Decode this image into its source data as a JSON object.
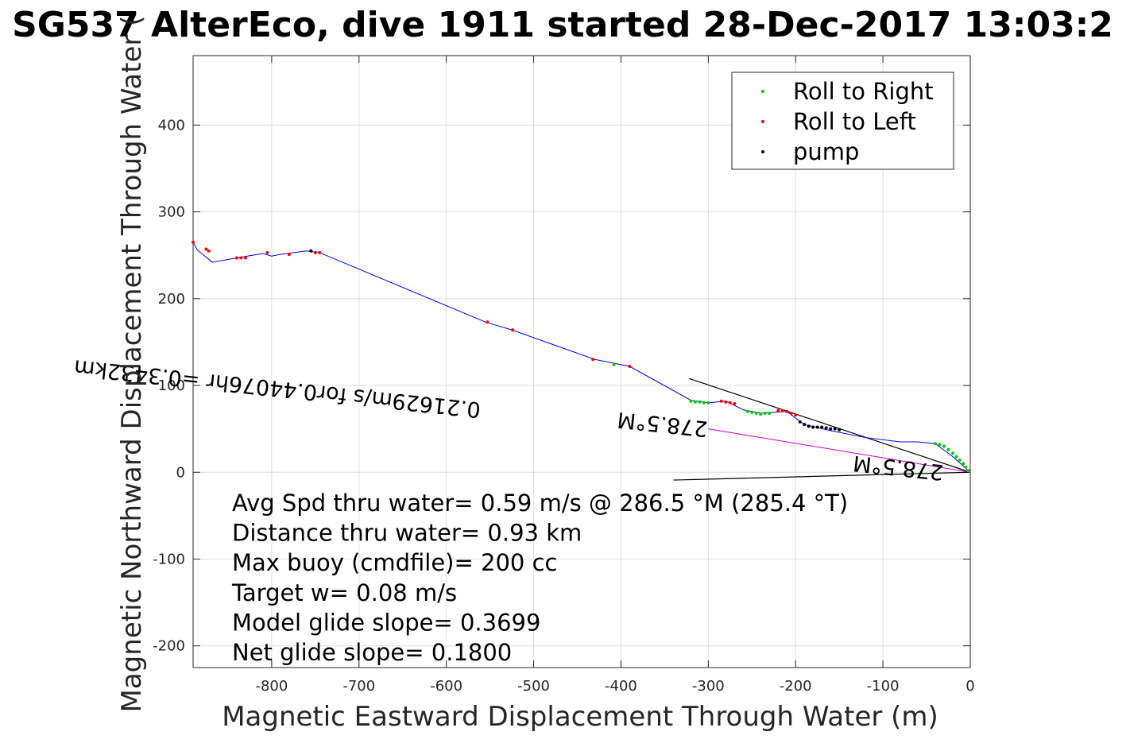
{
  "chart_data": {
    "type": "line",
    "title": "SG537 AlterEco, dive 1911 started 28-Dec-2017 13:03:2",
    "xlabel": "Magnetic Eastward Displacement Through Water (m)",
    "ylabel": "Magnetic Northward Displacement Through Water (",
    "xlim": [
      -890,
      0
    ],
    "ylim": [
      -225,
      480
    ],
    "grid": true,
    "legend_position": "top-right",
    "x_ticks": [
      -800,
      -700,
      -600,
      -500,
      -400,
      -300,
      -200,
      -100,
      0
    ],
    "y_ticks": [
      -200,
      -100,
      0,
      100,
      200,
      300,
      400
    ],
    "series": [
      {
        "name": "track",
        "color": "#0000ff",
        "x": [
          0,
          -20,
          -40,
          -60,
          -80,
          -120,
          -160,
          -190,
          -210,
          -240,
          -260,
          -280,
          -300,
          -320,
          -390,
          -430,
          -525,
          -555,
          -745,
          -760,
          -790,
          -800,
          -810,
          -840,
          -868,
          -885,
          -890
        ],
        "y": [
          0,
          18,
          33,
          35,
          35,
          40,
          48,
          55,
          70,
          68,
          72,
          82,
          80,
          83,
          122,
          130,
          164,
          173,
          253,
          255,
          251,
          249,
          252,
          247,
          242,
          256,
          265
        ]
      },
      {
        "name": "Roll to Right",
        "color": "#00cc00",
        "x": [
          -2,
          -5,
          -8,
          -12,
          -16,
          -20,
          -25,
          -30,
          -35,
          -40,
          -300,
          -305,
          -310,
          -315,
          -320,
          -230,
          -235,
          -240,
          -245,
          -250,
          -255,
          -408
        ],
        "y": [
          2,
          6,
          10,
          14,
          18,
          22,
          26,
          30,
          32,
          33,
          80,
          80,
          81,
          81,
          82,
          68,
          68,
          67,
          68,
          69,
          70,
          124
        ]
      },
      {
        "name": "Roll to Left",
        "color": "#ff0000",
        "x": [
          -890,
          -875,
          -872,
          -840,
          -835,
          -830,
          -805,
          -780,
          -750,
          -745,
          -553,
          -524,
          -432,
          -390,
          -285,
          -280,
          -275,
          -270,
          -220,
          -215,
          -210,
          -205,
          -200
        ],
        "y": [
          265,
          257,
          255,
          247,
          247,
          247,
          253,
          251,
          253,
          253,
          173,
          164,
          130,
          122,
          82,
          81,
          80,
          79,
          71,
          71,
          70,
          68,
          66
        ]
      },
      {
        "name": "pump",
        "color": "#000000",
        "x": [
          -755,
          -195,
          -190,
          -185,
          -180,
          -175,
          -170,
          -165,
          -160,
          -155,
          -150
        ],
        "y": [
          255,
          58,
          55,
          53,
          52,
          52,
          52,
          51,
          50,
          50,
          49
        ]
      }
    ],
    "extra_lines": [
      {
        "color": "#000000",
        "x": [
          0,
          -322
        ],
        "y": [
          0,
          108
        ]
      },
      {
        "color": "#000000",
        "x": [
          0,
          -340
        ],
        "y": [
          0,
          -9
        ]
      }
    ],
    "rotated_annotations": [
      {
        "text": "0.21629m/s for0.44076hr =0.3432km",
        "x": -560,
        "y": 80,
        "angle": 186
      },
      {
        "text": "278.5°M",
        "x": -300,
        "y": 58,
        "angle": 186
      },
      {
        "text": "278.5°M",
        "x": -30,
        "y": 8,
        "angle": 186
      }
    ]
  },
  "legend": {
    "items": [
      {
        "label": "Roll to Right",
        "color": "#00cc00"
      },
      {
        "label": "Roll to Left",
        "color": "#ff0000"
      },
      {
        "label": "pump",
        "color": "#000000"
      }
    ]
  },
  "info_lines": [
    "Avg Spd thru water=  0.59 m/s @ 286.5 °M (285.4 °T)",
    "Distance thru water=  0.93 km",
    "Max buoy (cmdfile)= 200 cc",
    "Target w= 0.08 m/s",
    "Model glide slope= 0.3699",
    "Net glide slope= 0.1800"
  ]
}
